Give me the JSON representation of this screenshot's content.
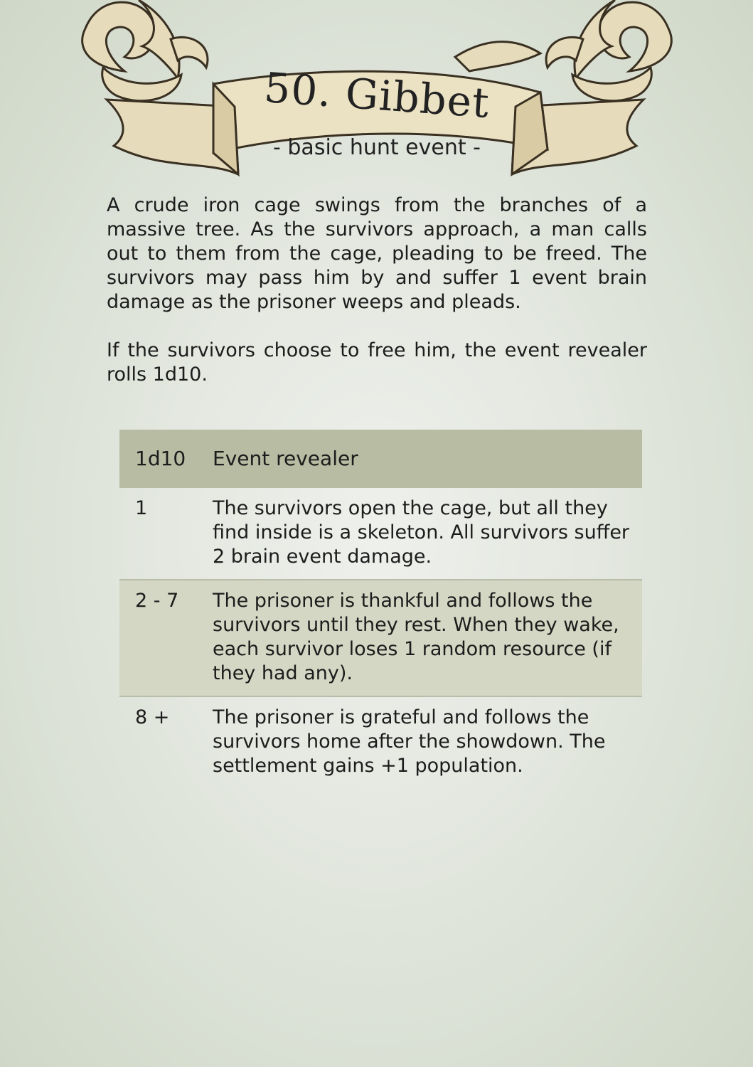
{
  "header": {
    "title": "50. Gibbet",
    "subtitle": "- basic hunt event -"
  },
  "body": {
    "paragraphs": [
      "A crude iron cage swings from the branches of a massive tree. As the survivors approach, a man calls out to them from the cage, pleading to be freed. The survivors may pass him by and suffer 1 event brain damage as the prisoner weeps and pleads.",
      "If the survivors choose to free him, the event revealer rolls 1d10."
    ]
  },
  "table": {
    "headers": [
      "1d10",
      "Event revealer"
    ],
    "rows": [
      {
        "roll": "1",
        "text": "The survivors open the cage, but all they find inside is a skeleton. All survivors suffer 2 brain event damage."
      },
      {
        "roll": "2 - 7",
        "text": "The prisoner is thankful and follows the survivors until they rest. When they wake, each survivor loses 1 random resource (if they had any)."
      },
      {
        "roll": "8 +",
        "text": "The prisoner is grateful and follows the survivors home after the showdown. The settlement gains +1 population."
      }
    ]
  },
  "colors": {
    "background": "#e4e8e0",
    "banner": "#e9dfbf",
    "table_header": "#b7bca3",
    "table_shade": "#d4d7c4"
  }
}
